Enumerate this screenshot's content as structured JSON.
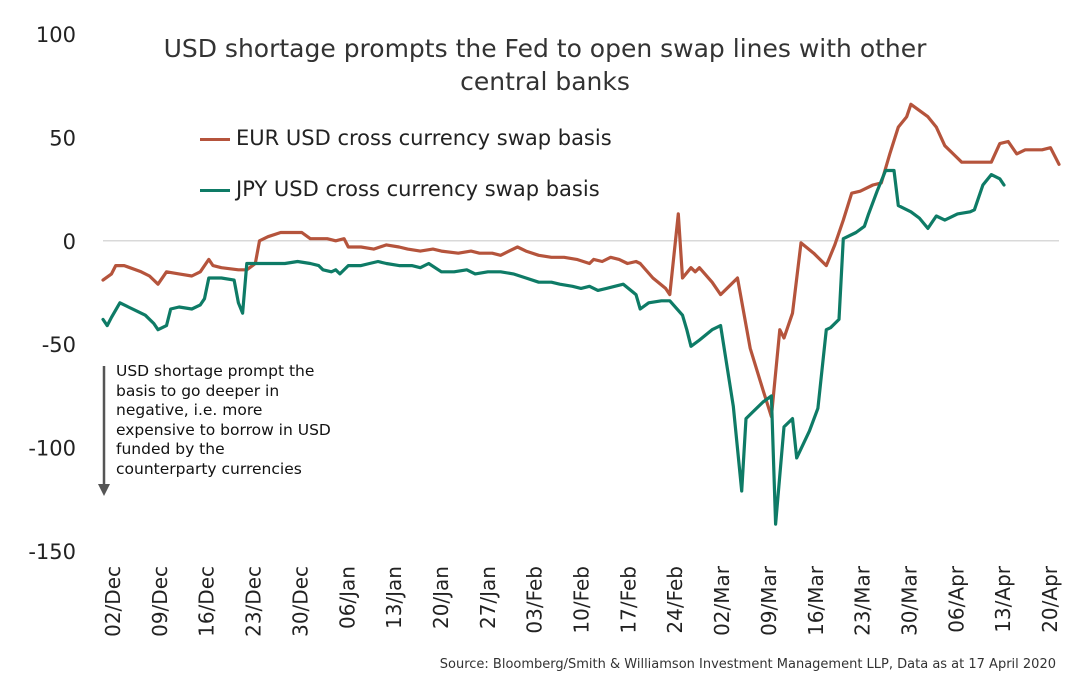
{
  "chart_data": {
    "type": "line",
    "title": "USD shortage prompts the Fed to open swap lines with other central banks",
    "ylim": [
      -150,
      100
    ],
    "yticks": [
      100,
      50,
      0,
      -50,
      -100,
      -150
    ],
    "xticks": [
      "02/Dec",
      "09/Dec",
      "16/Dec",
      "23/Dec",
      "30/Dec",
      "06/Jan",
      "13/Jan",
      "20/Jan",
      "27/Jan",
      "03/Feb",
      "10/Feb",
      "17/Feb",
      "24/Feb",
      "02/Mar",
      "09/Mar",
      "16/Mar",
      "23/Mar",
      "30/Mar",
      "06/Apr",
      "13/Apr",
      "20/Apr"
    ],
    "series": [
      {
        "name": "EUR USD cross currency swap basis",
        "color": "#b5543c",
        "points": [
          [
            0,
            -19
          ],
          [
            2,
            -16
          ],
          [
            3,
            -12
          ],
          [
            5,
            -12
          ],
          [
            9,
            -15
          ],
          [
            11,
            -17
          ],
          [
            13,
            -21
          ],
          [
            15,
            -15
          ],
          [
            18,
            -16
          ],
          [
            21,
            -17
          ],
          [
            23,
            -15
          ],
          [
            25,
            -9
          ],
          [
            26,
            -12
          ],
          [
            28,
            -13
          ],
          [
            32,
            -14
          ],
          [
            34,
            -14
          ],
          [
            36,
            -11
          ],
          [
            37,
            0
          ],
          [
            39,
            2
          ],
          [
            42,
            4
          ],
          [
            47,
            4
          ],
          [
            49,
            1
          ],
          [
            53,
            1
          ],
          [
            55,
            0
          ],
          [
            57,
            1
          ],
          [
            58,
            -3
          ],
          [
            61,
            -3
          ],
          [
            64,
            -4
          ],
          [
            67,
            -2
          ],
          [
            70,
            -3
          ],
          [
            72,
            -4
          ],
          [
            75,
            -5
          ],
          [
            78,
            -4
          ],
          [
            80,
            -5
          ],
          [
            84,
            -6
          ],
          [
            87,
            -5
          ],
          [
            89,
            -6
          ],
          [
            92,
            -6
          ],
          [
            94,
            -7
          ],
          [
            96,
            -5
          ],
          [
            98,
            -3
          ],
          [
            100,
            -5
          ],
          [
            103,
            -7
          ],
          [
            106,
            -8
          ],
          [
            109,
            -8
          ],
          [
            112,
            -9
          ],
          [
            115,
            -11
          ],
          [
            116,
            -9
          ],
          [
            118,
            -10
          ],
          [
            120,
            -8
          ],
          [
            122,
            -9
          ],
          [
            124,
            -11
          ],
          [
            126,
            -10
          ],
          [
            127,
            -11
          ],
          [
            130,
            -18
          ],
          [
            133,
            -23
          ],
          [
            134,
            -26
          ],
          [
            136,
            13
          ],
          [
            137,
            -18
          ],
          [
            139,
            -13
          ],
          [
            140,
            -15
          ],
          [
            141,
            -13
          ],
          [
            144,
            -20
          ],
          [
            146,
            -26
          ],
          [
            148,
            -22
          ],
          [
            150,
            -18
          ],
          [
            153,
            -52
          ],
          [
            156,
            -72
          ],
          [
            158,
            -85
          ],
          [
            160,
            -43
          ],
          [
            161,
            -47
          ],
          [
            163,
            -35
          ],
          [
            165,
            -1
          ],
          [
            168,
            -6
          ],
          [
            171,
            -12
          ],
          [
            173,
            -2
          ],
          [
            175,
            10
          ],
          [
            177,
            23
          ],
          [
            179,
            24
          ],
          [
            182,
            27
          ],
          [
            184,
            28
          ],
          [
            186,
            42
          ],
          [
            188,
            55
          ],
          [
            190,
            60
          ],
          [
            191,
            66
          ],
          [
            195,
            60
          ],
          [
            197,
            55
          ],
          [
            199,
            46
          ],
          [
            201,
            42
          ],
          [
            203,
            38
          ],
          [
            206,
            38
          ],
          [
            208,
            38
          ],
          [
            210,
            38
          ],
          [
            212,
            47
          ],
          [
            214,
            48
          ],
          [
            216,
            42
          ],
          [
            218,
            44
          ],
          [
            220,
            44
          ],
          [
            222,
            44
          ],
          [
            224,
            45
          ],
          [
            226,
            37
          ]
        ]
      },
      {
        "name": "JPY USD cross currency swap basis",
        "color": "#0e7b66",
        "points": [
          [
            0,
            -38
          ],
          [
            1,
            -41
          ],
          [
            2,
            -37
          ],
          [
            4,
            -30
          ],
          [
            6,
            -32
          ],
          [
            8,
            -34
          ],
          [
            10,
            -36
          ],
          [
            12,
            -40
          ],
          [
            13,
            -43
          ],
          [
            15,
            -41
          ],
          [
            16,
            -33
          ],
          [
            18,
            -32
          ],
          [
            21,
            -33
          ],
          [
            23,
            -31
          ],
          [
            24,
            -28
          ],
          [
            25,
            -18
          ],
          [
            28,
            -18
          ],
          [
            31,
            -19
          ],
          [
            32,
            -30
          ],
          [
            33,
            -35
          ],
          [
            34,
            -11
          ],
          [
            37,
            -11
          ],
          [
            40,
            -11
          ],
          [
            43,
            -11
          ],
          [
            46,
            -10
          ],
          [
            49,
            -11
          ],
          [
            51,
            -12
          ],
          [
            52,
            -14
          ],
          [
            54,
            -15
          ],
          [
            55,
            -14
          ],
          [
            56,
            -16
          ],
          [
            58,
            -12
          ],
          [
            61,
            -12
          ],
          [
            63,
            -11
          ],
          [
            65,
            -10
          ],
          [
            67,
            -11
          ],
          [
            70,
            -12
          ],
          [
            73,
            -12
          ],
          [
            75,
            -13
          ],
          [
            77,
            -11
          ],
          [
            80,
            -15
          ],
          [
            83,
            -15
          ],
          [
            86,
            -14
          ],
          [
            88,
            -16
          ],
          [
            91,
            -15
          ],
          [
            94,
            -15
          ],
          [
            97,
            -16
          ],
          [
            100,
            -18
          ],
          [
            103,
            -20
          ],
          [
            106,
            -20
          ],
          [
            108,
            -21
          ],
          [
            111,
            -22
          ],
          [
            113,
            -23
          ],
          [
            115,
            -22
          ],
          [
            117,
            -24
          ],
          [
            119,
            -23
          ],
          [
            121,
            -22
          ],
          [
            123,
            -21
          ],
          [
            126,
            -26
          ],
          [
            127,
            -33
          ],
          [
            129,
            -30
          ],
          [
            132,
            -29
          ],
          [
            134,
            -29
          ],
          [
            137,
            -36
          ],
          [
            138,
            -43
          ],
          [
            139,
            -51
          ],
          [
            141,
            -48
          ],
          [
            144,
            -43
          ],
          [
            146,
            -41
          ],
          [
            149,
            -80
          ],
          [
            151,
            -121
          ],
          [
            152,
            -86
          ],
          [
            154,
            -82
          ],
          [
            156,
            -78
          ],
          [
            158,
            -75
          ],
          [
            159,
            -137
          ],
          [
            161,
            -90
          ],
          [
            163,
            -86
          ],
          [
            164,
            -105
          ],
          [
            167,
            -92
          ],
          [
            169,
            -81
          ],
          [
            171,
            -43
          ],
          [
            172,
            -42
          ],
          [
            174,
            -38
          ],
          [
            175,
            1
          ],
          [
            178,
            4
          ],
          [
            180,
            7
          ],
          [
            181,
            13
          ],
          [
            183,
            24
          ],
          [
            185,
            34
          ],
          [
            187,
            34
          ],
          [
            188,
            17
          ],
          [
            191,
            14
          ],
          [
            193,
            11
          ],
          [
            195,
            6
          ],
          [
            197,
            12
          ],
          [
            199,
            10
          ],
          [
            200,
            11
          ],
          [
            202,
            13
          ],
          [
            205,
            14
          ],
          [
            206,
            15
          ],
          [
            208,
            27
          ],
          [
            210,
            32
          ],
          [
            212,
            30
          ],
          [
            213,
            27
          ]
        ]
      }
    ],
    "annotation_lines": [
      "USD shortage prompt the",
      "basis to go deeper in",
      "negative, i.e. more",
      "expensive to borrow in USD",
      "funded by the",
      "counterparty currencies"
    ],
    "source": "Source: Bloomberg/Smith & Williamson Investment Management LLP, Data as at 17 April 2020",
    "grid": false,
    "zero_line": true
  }
}
